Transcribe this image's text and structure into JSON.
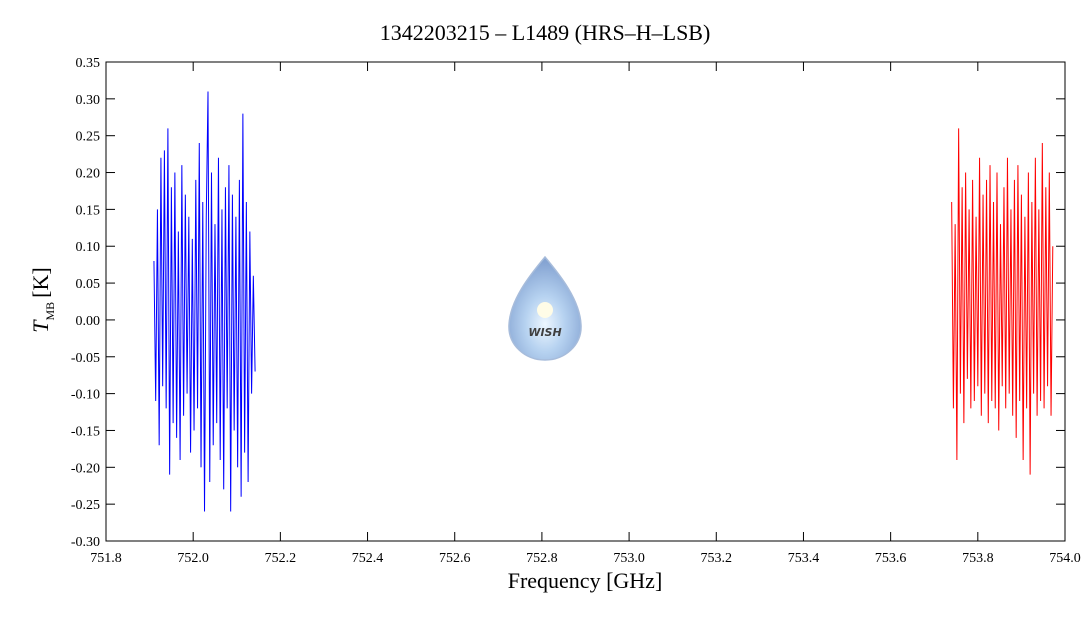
{
  "chart_data": {
    "type": "line",
    "title": "1342203215 – L1489 (HRS–H–LSB)",
    "xlabel": "Frequency [GHz]",
    "ylabel": {
      "symbol": "T",
      "subscript": "MB",
      "unit": "[K]"
    },
    "watermark": "WISH",
    "xlim": [
      751.8,
      754.0
    ],
    "xticks": [
      751.8,
      {
        "value": 752.0,
        "label": "752.0"
      },
      752.2,
      752.4,
      752.6,
      752.8,
      {
        "value": 753.0,
        "label": "753.0"
      },
      753.2,
      753.4,
      753.6,
      753.8,
      {
        "value": 754.0,
        "label": "754.0"
      }
    ],
    "ylim": [
      -0.3,
      0.35
    ],
    "yticks": [
      {
        "value": -0.3,
        "label": "-0.30"
      },
      -0.25,
      {
        "value": -0.2,
        "label": "-0.20"
      },
      -0.15,
      {
        "value": -0.1,
        "label": "-0.10"
      },
      -0.05,
      {
        "value": 0,
        "label": "0.00"
      },
      0.05,
      {
        "value": 0.1,
        "label": "0.10"
      },
      0.15,
      {
        "value": 0.2,
        "label": "0.20"
      },
      0.25,
      {
        "value": 0.3,
        "label": "0.30"
      },
      0.35
    ],
    "series": [
      {
        "color": "#0000ff",
        "x": [
          751.91,
          751.914,
          751.918,
          751.922,
          751.926,
          751.93,
          751.934,
          751.938,
          751.942,
          751.946,
          751.95,
          751.954,
          751.958,
          751.962,
          751.966,
          751.97,
          751.974,
          751.978,
          751.982,
          751.986,
          751.99,
          751.994,
          751.998,
          752.002,
          752.006,
          752.01,
          752.014,
          752.018,
          752.022,
          752.026,
          752.03,
          752.034,
          752.038,
          752.042,
          752.046,
          752.05,
          752.054,
          752.058,
          752.062,
          752.066,
          752.07,
          752.074,
          752.078,
          752.082,
          752.086,
          752.09,
          752.094,
          752.098,
          752.102,
          752.106,
          752.11,
          752.114,
          752.118,
          752.122,
          752.126,
          752.13,
          752.134,
          752.138,
          752.142
        ],
        "values": [
          0.08,
          -0.11,
          0.15,
          -0.17,
          0.22,
          -0.09,
          0.23,
          -0.12,
          0.26,
          -0.21,
          0.18,
          -0.14,
          0.2,
          -0.16,
          0.12,
          -0.19,
          0.21,
          -0.13,
          0.17,
          -0.1,
          0.14,
          -0.18,
          0.11,
          -0.15,
          0.19,
          -0.12,
          0.24,
          -0.2,
          0.16,
          -0.26,
          0.14,
          0.31,
          -0.22,
          0.2,
          -0.17,
          0.13,
          -0.14,
          0.22,
          -0.19,
          0.15,
          -0.23,
          0.18,
          -0.12,
          0.21,
          -0.26,
          0.17,
          -0.15,
          0.14,
          -0.2,
          0.19,
          -0.24,
          0.28,
          -0.18,
          0.16,
          -0.22,
          0.12,
          -0.1,
          0.06,
          -0.07
        ]
      },
      {
        "color": "#ff0000",
        "x": [
          753.74,
          753.744,
          753.748,
          753.752,
          753.756,
          753.76,
          753.764,
          753.768,
          753.772,
          753.776,
          753.78,
          753.784,
          753.788,
          753.792,
          753.796,
          753.8,
          753.804,
          753.808,
          753.812,
          753.816,
          753.82,
          753.824,
          753.828,
          753.832,
          753.836,
          753.84,
          753.844,
          753.848,
          753.852,
          753.856,
          753.86,
          753.864,
          753.868,
          753.872,
          753.876,
          753.88,
          753.884,
          753.888,
          753.892,
          753.896,
          753.9,
          753.904,
          753.908,
          753.912,
          753.916,
          753.92,
          753.924,
          753.928,
          753.932,
          753.936,
          753.94,
          753.944,
          753.948,
          753.952,
          753.956,
          753.96,
          753.964,
          753.968,
          753.972
        ],
        "values": [
          0.16,
          -0.12,
          0.13,
          -0.19,
          0.26,
          -0.1,
          0.18,
          -0.14,
          0.2,
          -0.08,
          0.15,
          -0.12,
          0.19,
          -0.11,
          0.14,
          -0.09,
          0.22,
          -0.13,
          0.17,
          -0.1,
          0.19,
          -0.14,
          0.21,
          -0.11,
          0.16,
          -0.12,
          0.2,
          -0.15,
          0.13,
          -0.09,
          0.18,
          -0.12,
          0.22,
          -0.1,
          0.15,
          -0.13,
          0.19,
          -0.16,
          0.21,
          -0.11,
          0.17,
          -0.19,
          0.14,
          -0.12,
          0.2,
          -0.21,
          0.16,
          -0.1,
          0.22,
          -0.13,
          0.15,
          -0.11,
          0.24,
          -0.12,
          0.18,
          -0.09,
          0.2,
          -0.13,
          0.1
        ]
      }
    ]
  }
}
